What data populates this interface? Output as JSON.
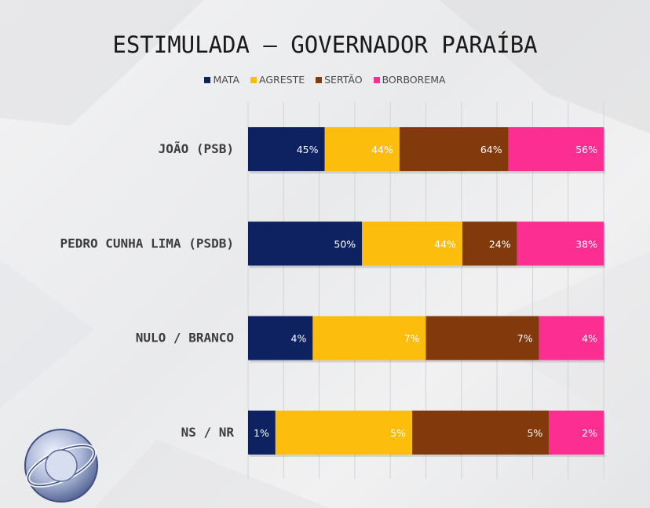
{
  "chart_data": {
    "type": "bar",
    "orientation": "horizontal",
    "stacked": true,
    "title": "ESTIMULADA – GOVERNADOR PARAÍBA",
    "categories": [
      "JOÃO (PSB)",
      "PEDRO CUNHA LIMA (PSDB)",
      "NULO / BRANCO",
      "NS / NR"
    ],
    "series": [
      {
        "name": "MATA",
        "color": "#0e2262",
        "values": [
          45,
          50,
          4,
          1
        ]
      },
      {
        "name": "AGRESTE",
        "color": "#fdbd0c",
        "values": [
          44,
          44,
          7,
          5
        ]
      },
      {
        "name": "SERTÃO",
        "color": "#82390c",
        "values": [
          64,
          24,
          7,
          5
        ]
      },
      {
        "name": "BORBOREMA",
        "color": "#fc2e92",
        "values": [
          56,
          38,
          4,
          2
        ]
      }
    ],
    "value_suffix": "%",
    "grid": true,
    "legend_position": "top"
  }
}
